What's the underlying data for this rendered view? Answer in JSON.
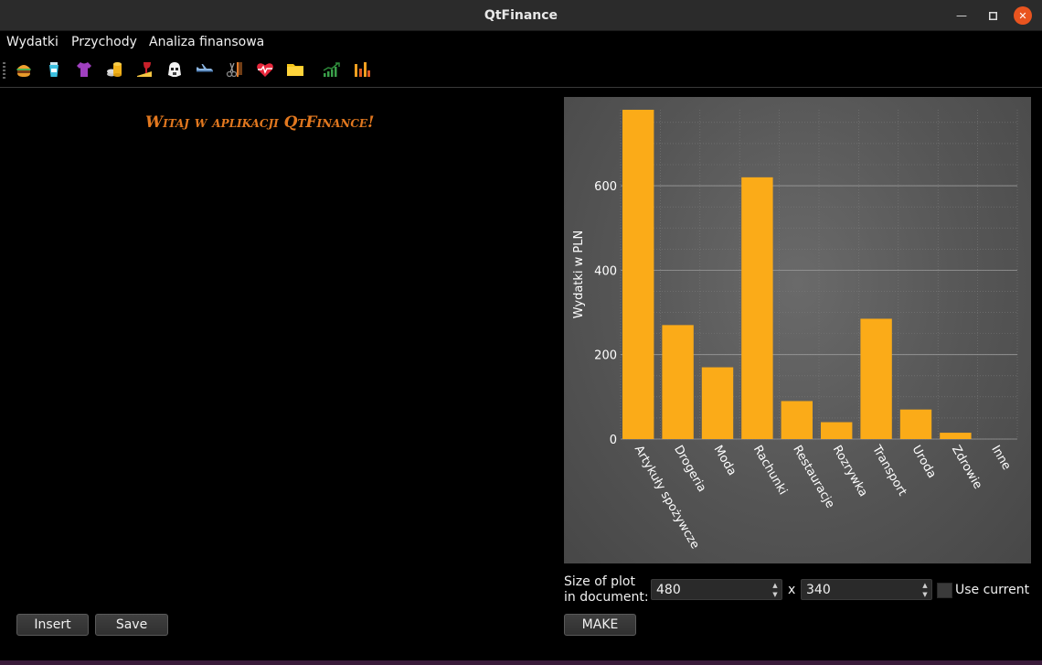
{
  "window": {
    "title": "QtFinance"
  },
  "menu": [
    "Wydatki",
    "Przychody",
    "Analiza finansowa"
  ],
  "toolbar": {
    "icons": [
      "burger-icon",
      "cosmetics-icon",
      "tshirt-icon",
      "coins-icon",
      "wine-icon",
      "stormtrooper-icon",
      "airplane-icon",
      "scissors-comb-icon",
      "heart-pulse-icon",
      "folder-icon",
      "growth-chart-icon",
      "bar-chart-icon"
    ]
  },
  "welcome": "Witaj w aplikacji QtFinance!",
  "buttons": {
    "insert": "Insert",
    "save": "Save",
    "make": "MAKE"
  },
  "plot_size": {
    "label_line1": "Size of plot",
    "label_line2": "in document:",
    "width": "480",
    "separator": "x",
    "height": "340",
    "use_current": "Use current",
    "use_current_checked": false
  },
  "colors": {
    "bar": "#fbab18",
    "welcome": "#e2781f",
    "close_button": "#e9541f"
  },
  "chart_data": {
    "type": "bar",
    "categories": [
      "Artykuły spożywcze",
      "Drogeria",
      "Moda",
      "Rachunki",
      "Restauracje",
      "Rozrywka",
      "Transport",
      "Uroda",
      "Zdrowie",
      "Inne"
    ],
    "values": [
      780,
      270,
      170,
      620,
      90,
      40,
      285,
      70,
      15,
      0
    ],
    "ylabel": "Wydatki w PLN",
    "ylim": [
      0,
      780
    ],
    "yticks": [
      0,
      200,
      400,
      600
    ],
    "grid": true
  }
}
